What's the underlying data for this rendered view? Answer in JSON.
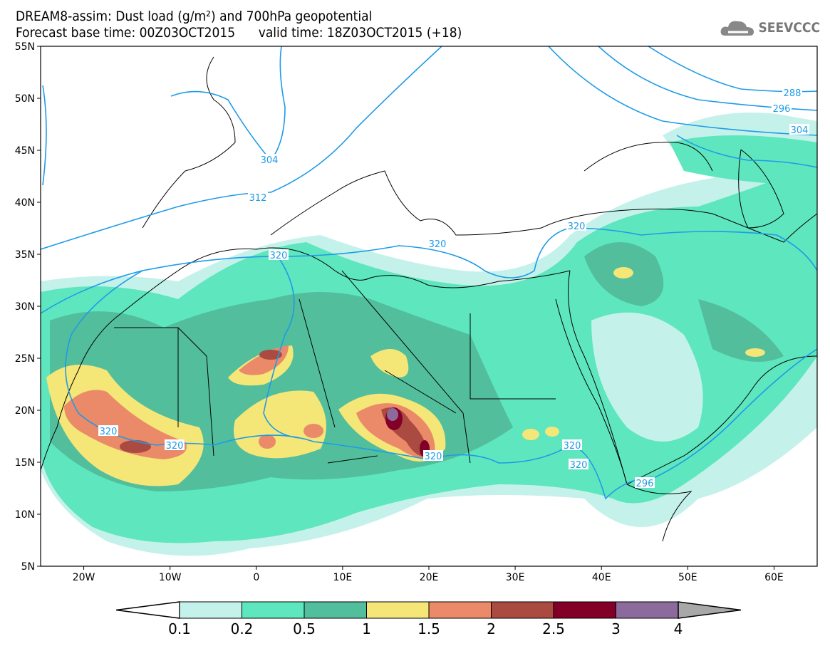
{
  "header": {
    "title": "DREAM8-assim: Dust load (g/m²) and 700hPa geopotential",
    "subtitle": "Forecast base time: 00Z03OCT2015      valid time: 18Z03OCT2015 (+18)",
    "logo_text": "SEEVCCC",
    "logo_icon": "cloud-icon"
  },
  "map": {
    "lon_range": [
      -25,
      65
    ],
    "lat_range": [
      5,
      55
    ],
    "lat_labels": [
      "55N",
      "50N",
      "45N",
      "40N",
      "35N",
      "30N",
      "25N",
      "20N",
      "15N",
      "10N",
      "5N"
    ],
    "lon_labels": [
      "20W",
      "10W",
      "0",
      "10E",
      "20E",
      "30E",
      "40E",
      "50E",
      "60E"
    ],
    "contour_color": "#1e9be8",
    "contour_labels": [
      "288",
      "296",
      "304",
      "304",
      "312",
      "320",
      "320",
      "320",
      "320",
      "320",
      "320",
      "320",
      "320",
      "296"
    ]
  },
  "colorbar": {
    "labels": [
      "0.1",
      "0.2",
      "0.5",
      "1",
      "1.5",
      "2",
      "2.5",
      "3",
      "4"
    ],
    "colors": [
      "#c4f2ea",
      "#5ee6be",
      "#52be9c",
      "#f5e678",
      "#eb8a68",
      "#aa4a40",
      "#820028",
      "#8c6a9c"
    ],
    "over_color": "#a8a8a8",
    "under_color": "#ffffff"
  }
}
